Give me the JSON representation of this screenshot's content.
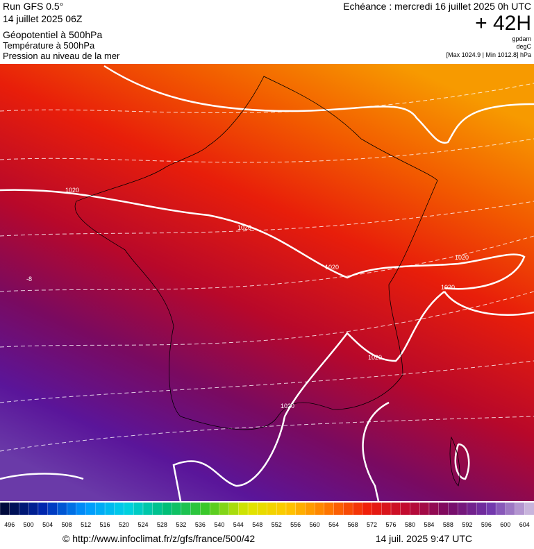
{
  "header": {
    "run": "Run GFS 0.5°",
    "date": "14 juillet 2025 06Z",
    "line1": "Géopotentiel à 500hPa",
    "line2": "Température à 500hPa",
    "line3": "Pression au niveau de la mer",
    "echeance": "Echéance : mercredi 16 juillet 2025 0h UTC",
    "lead": "+ 42H",
    "unit1": "gpdam",
    "unit2": "degC",
    "range": "[Max 1024.9 | Min 1012.8] hPa"
  },
  "map": {
    "labels": [
      "1020",
      "1020",
      "1020",
      "1020",
      "1020",
      "1020",
      "1020",
      "-8"
    ]
  },
  "scale": {
    "labels": [
      496,
      500,
      504,
      508,
      512,
      516,
      520,
      524,
      528,
      532,
      536,
      540,
      544,
      548,
      552,
      556,
      560,
      564,
      568,
      572,
      576,
      580,
      584,
      588,
      592,
      596,
      600,
      604
    ]
  },
  "footer": {
    "source": "© http://www.infoclimat.fr/z/gfs/france/500/42",
    "timestamp": "14 juil. 2025  9:47 UTC"
  }
}
